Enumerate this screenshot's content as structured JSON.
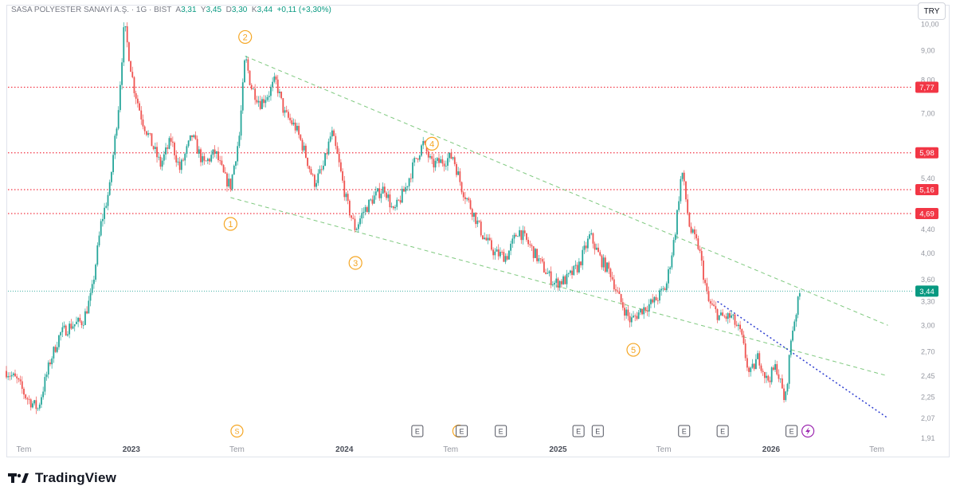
{
  "header": {
    "symbol": "SASA POLYESTER SANAYİ A.Ş. · 1G · BIST",
    "ohlc": [
      {
        "k": "A",
        "v": "3,31"
      },
      {
        "k": "Y",
        "v": "3,45"
      },
      {
        "k": "D",
        "v": "3,30"
      },
      {
        "k": "K",
        "v": "3,44"
      }
    ],
    "change": "+0,11 (+3,30%)"
  },
  "currency_button": "TRY",
  "brand": "TradingView",
  "colors": {
    "up": "#26a69a",
    "down": "#ef5350",
    "accent": "#089981",
    "level": "#f23645",
    "wave": "#f5a623"
  },
  "chart_data": {
    "type": "candlestick",
    "price_scale": "log",
    "y_ticks": [
      "10,00",
      "9,00",
      "8,00",
      "7,00",
      "5,40",
      "4,40",
      "4,00",
      "3,60",
      "3,30",
      "3,00",
      "2,70",
      "2,45",
      "2,25",
      "2,07",
      "1,91"
    ],
    "x_ticks": [
      {
        "label": "Tem",
        "date": "2022-07"
      },
      {
        "label": "2023",
        "date": "2023-01"
      },
      {
        "label": "Tem",
        "date": "2023-07"
      },
      {
        "label": "2024",
        "date": "2024-01"
      },
      {
        "label": "Tem",
        "date": "2024-07"
      },
      {
        "label": "2025",
        "date": "2025-01"
      },
      {
        "label": "Tem",
        "date": "2025-07"
      },
      {
        "label": "2026",
        "date": "2026-01"
      },
      {
        "label": "Tem",
        "date": "2026-07"
      }
    ],
    "price_path": [
      [
        "2022-06-01",
        2.5
      ],
      [
        "2022-06-20",
        2.4
      ],
      [
        "2022-07-05",
        2.25
      ],
      [
        "2022-07-25",
        2.15
      ],
      [
        "2022-08-15",
        2.6
      ],
      [
        "2022-09-01",
        2.9
      ],
      [
        "2022-09-20",
        3.0
      ],
      [
        "2022-10-10",
        3.05
      ],
      [
        "2022-10-25",
        3.4
      ],
      [
        "2022-11-10",
        4.5
      ],
      [
        "2022-11-25",
        5.2
      ],
      [
        "2022-12-10",
        7.2
      ],
      [
        "2022-12-20",
        10.0
      ],
      [
        "2023-01-05",
        7.8
      ],
      [
        "2023-01-20",
        6.8
      ],
      [
        "2023-02-05",
        6.2
      ],
      [
        "2023-02-20",
        5.7
      ],
      [
        "2023-03-10",
        6.3
      ],
      [
        "2023-03-25",
        5.6
      ],
      [
        "2023-04-15",
        6.4
      ],
      [
        "2023-05-05",
        5.7
      ],
      [
        "2023-05-25",
        6.0
      ],
      [
        "2023-06-10",
        5.4
      ],
      [
        "2023-06-20",
        5.25
      ],
      [
        "2023-07-05",
        6.4
      ],
      [
        "2023-07-15",
        8.8
      ],
      [
        "2023-07-25",
        7.8
      ],
      [
        "2023-08-10",
        7.3
      ],
      [
        "2023-08-25",
        7.6
      ],
      [
        "2023-09-05",
        8.0
      ],
      [
        "2023-09-20",
        7.0
      ],
      [
        "2023-10-10",
        6.6
      ],
      [
        "2023-10-25",
        6.0
      ],
      [
        "2023-11-10",
        5.3
      ],
      [
        "2023-11-25",
        5.6
      ],
      [
        "2023-12-10",
        6.5
      ],
      [
        "2023-12-20",
        5.9
      ],
      [
        "2024-01-05",
        4.9
      ],
      [
        "2024-01-20",
        4.4
      ],
      [
        "2024-02-01",
        4.7
      ],
      [
        "2024-02-20",
        5.0
      ],
      [
        "2024-03-10",
        5.2
      ],
      [
        "2024-03-25",
        4.7
      ],
      [
        "2024-04-15",
        5.2
      ],
      [
        "2024-05-01",
        5.8
      ],
      [
        "2024-05-15",
        6.2
      ],
      [
        "2024-05-30",
        5.7
      ],
      [
        "2024-06-20",
        5.8
      ],
      [
        "2024-07-05",
        5.9
      ],
      [
        "2024-07-20",
        5.2
      ],
      [
        "2024-08-05",
        4.8
      ],
      [
        "2024-08-25",
        4.3
      ],
      [
        "2024-09-15",
        4.0
      ],
      [
        "2024-10-05",
        3.95
      ],
      [
        "2024-10-25",
        4.4
      ],
      [
        "2024-11-15",
        4.1
      ],
      [
        "2024-12-05",
        3.8
      ],
      [
        "2024-12-25",
        3.55
      ],
      [
        "2025-01-15",
        3.6
      ],
      [
        "2025-02-05",
        3.8
      ],
      [
        "2025-02-25",
        4.3
      ],
      [
        "2025-03-15",
        3.9
      ],
      [
        "2025-04-01",
        3.7
      ],
      [
        "2025-04-15",
        3.35
      ],
      [
        "2025-05-05",
        3.05
      ],
      [
        "2025-05-25",
        3.2
      ],
      [
        "2025-06-15",
        3.3
      ],
      [
        "2025-07-05",
        3.5
      ],
      [
        "2025-07-20",
        4.3
      ],
      [
        "2025-08-01",
        5.6
      ],
      [
        "2025-08-15",
        4.4
      ],
      [
        "2025-08-30",
        4.1
      ],
      [
        "2025-09-15",
        3.3
      ],
      [
        "2025-10-05",
        3.1
      ],
      [
        "2025-10-25",
        3.1
      ],
      [
        "2025-11-10",
        2.9
      ],
      [
        "2025-11-25",
        2.45
      ],
      [
        "2025-12-10",
        2.65
      ],
      [
        "2025-12-25",
        2.4
      ],
      [
        "2026-01-10",
        2.55
      ],
      [
        "2026-01-25",
        2.2
      ],
      [
        "2026-02-05",
        2.9
      ],
      [
        "2026-02-20",
        3.44
      ]
    ],
    "horizontal_levels": [
      {
        "price": 7.77,
        "label": "7,77"
      },
      {
        "price": 5.98,
        "label": "5,98"
      },
      {
        "price": 5.16,
        "label": "5,16"
      },
      {
        "price": 4.69,
        "label": "4,69"
      }
    ],
    "last_price": {
      "price": 3.44,
      "label": "3,44"
    },
    "trendlines": [
      {
        "style": "green-dashed",
        "from": [
          "2023-07-15",
          8.8
        ],
        "to": [
          "2026-07-20",
          3.0
        ]
      },
      {
        "style": "green-dashed",
        "from": [
          "2023-06-20",
          5.0
        ],
        "to": [
          "2026-07-20",
          2.45
        ]
      },
      {
        "style": "blue-dotted",
        "from": [
          "2025-10-01",
          3.3
        ],
        "to": [
          "2026-07-20",
          2.07
        ]
      }
    ],
    "wave_labels": [
      {
        "label": "1",
        "date": "2023-06-20",
        "price": 4.5
      },
      {
        "label": "2",
        "date": "2023-07-15",
        "price": 9.5
      },
      {
        "label": "3",
        "date": "2024-01-20",
        "price": 3.85
      },
      {
        "label": "4",
        "date": "2024-05-30",
        "price": 6.2
      },
      {
        "label": "5",
        "date": "2025-05-10",
        "price": 2.72
      }
    ],
    "event_markers": [
      {
        "type": "S",
        "date": "2023-07-01"
      },
      {
        "type": "E",
        "date": "2024-05-05"
      },
      {
        "type": "S",
        "date": "2024-07-15"
      },
      {
        "type": "E",
        "date": "2024-07-20"
      },
      {
        "type": "E",
        "date": "2024-09-25"
      },
      {
        "type": "E",
        "date": "2025-02-05"
      },
      {
        "type": "E",
        "date": "2025-03-10"
      },
      {
        "type": "E",
        "date": "2025-08-05"
      },
      {
        "type": "E",
        "date": "2025-10-10"
      },
      {
        "type": "E",
        "date": "2026-02-05"
      },
      {
        "type": "lightning",
        "date": "2026-03-05"
      }
    ]
  }
}
